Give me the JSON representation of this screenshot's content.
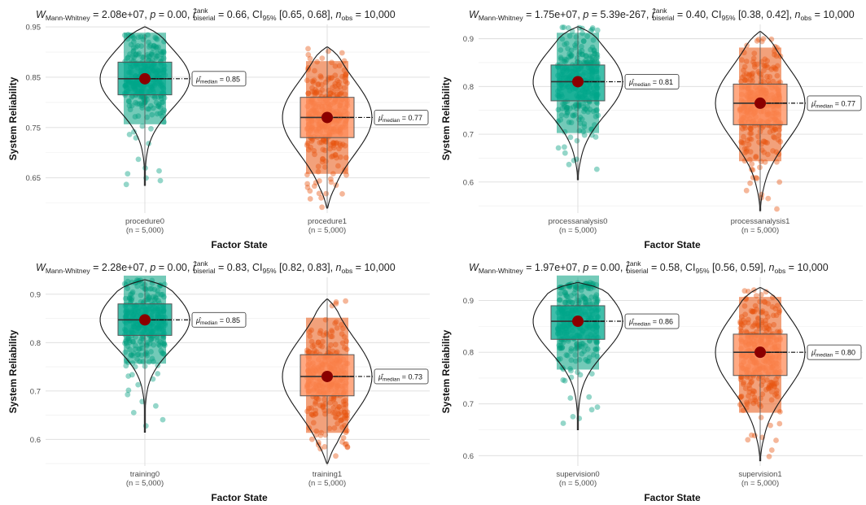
{
  "chart_data": [
    {
      "type": "violin-box-scatter",
      "subtitle": {
        "w": "2.08e+07",
        "p": "0.00",
        "r": "0.66",
        "ci": "[0.65, 0.68]",
        "n": "10,000"
      },
      "xlabel": "Factor State",
      "ylabel": "System Reliability",
      "yticks": [
        "0.65",
        "0.75",
        "0.85",
        "0.95"
      ],
      "ylim": [
        0.58,
        0.955
      ],
      "groups": [
        {
          "label": "procedure0",
          "n": "(n = 5,000)",
          "min": 0.635,
          "q1": 0.815,
          "median": 0.847,
          "q3": 0.88,
          "max": 0.935,
          "violin_top": 0.95,
          "violin_bottom": 0.635,
          "median_label": "0.85",
          "color": "#009e7e",
          "box_fill": "#00a88e"
        },
        {
          "label": "procedure1",
          "n": "(n = 5,000)",
          "min": 0.59,
          "q1": 0.73,
          "median": 0.77,
          "q3": 0.81,
          "max": 0.91,
          "violin_top": 0.91,
          "violin_bottom": 0.59,
          "median_label": "0.77",
          "color": "#e8540e",
          "box_fill": "#ff8c5a"
        }
      ]
    },
    {
      "type": "violin-box-scatter",
      "subtitle": {
        "w": "1.75e+07",
        "p": "5.39e-267",
        "r": "0.40",
        "ci": "[0.38, 0.42]",
        "n": "10,000"
      },
      "xlabel": "Factor State",
      "ylabel": "System Reliability",
      "yticks": [
        "0.6",
        "0.7",
        "0.8",
        "0.9"
      ],
      "ylim": [
        0.535,
        0.93
      ],
      "groups": [
        {
          "label": "processanalysis0",
          "n": "(n = 5,000)",
          "min": 0.605,
          "q1": 0.77,
          "median": 0.81,
          "q3": 0.845,
          "max": 0.925,
          "violin_top": 0.925,
          "violin_bottom": 0.605,
          "median_label": "0.81",
          "color": "#009e7e",
          "box_fill": "#00a88e"
        },
        {
          "label": "processanalysis1",
          "n": "(n = 5,000)",
          "min": 0.54,
          "q1": 0.72,
          "median": 0.765,
          "q3": 0.805,
          "max": 0.915,
          "violin_top": 0.915,
          "violin_bottom": 0.54,
          "median_label": "0.77",
          "color": "#e8540e",
          "box_fill": "#ff8c5a"
        }
      ]
    },
    {
      "type": "violin-box-scatter",
      "subtitle": {
        "w": "2.28e+07",
        "p": "0.00",
        "r": "0.83",
        "ci": "[0.82, 0.83]",
        "n": "10,000"
      },
      "xlabel": "Factor State",
      "ylabel": "System Reliability",
      "yticks": [
        "0.6",
        "0.7",
        "0.8",
        "0.9"
      ],
      "ylim": [
        0.545,
        0.935
      ],
      "groups": [
        {
          "label": "training0",
          "n": "(n = 5,000)",
          "min": 0.615,
          "q1": 0.815,
          "median": 0.847,
          "q3": 0.88,
          "max": 0.93,
          "violin_top": 0.93,
          "violin_bottom": 0.615,
          "median_label": "0.85",
          "color": "#009e7e",
          "box_fill": "#00a88e"
        },
        {
          "label": "training1",
          "n": "(n = 5,000)",
          "min": 0.55,
          "q1": 0.69,
          "median": 0.73,
          "q3": 0.775,
          "max": 0.89,
          "violin_top": 0.89,
          "violin_bottom": 0.55,
          "median_label": "0.73",
          "color": "#e8540e",
          "box_fill": "#ff8c5a"
        }
      ]
    },
    {
      "type": "violin-box-scatter",
      "subtitle": {
        "w": "1.97e+07",
        "p": "0.00",
        "r": "0.58",
        "ci": "[0.56, 0.59]",
        "n": "10,000"
      },
      "xlabel": "Factor State",
      "ylabel": "System Reliability",
      "yticks": [
        "0.6",
        "0.7",
        "0.8",
        "0.9"
      ],
      "ylim": [
        0.58,
        0.945
      ],
      "groups": [
        {
          "label": "supervision0",
          "n": "(n = 5,000)",
          "min": 0.65,
          "q1": 0.825,
          "median": 0.86,
          "q3": 0.89,
          "max": 0.935,
          "violin_top": 0.935,
          "violin_bottom": 0.65,
          "median_label": "0.86",
          "color": "#009e7e",
          "box_fill": "#00a88e"
        },
        {
          "label": "supervision1",
          "n": "(n = 5,000)",
          "min": 0.59,
          "q1": 0.755,
          "median": 0.8,
          "q3": 0.835,
          "max": 0.925,
          "violin_top": 0.925,
          "violin_bottom": 0.59,
          "median_label": "0.80",
          "color": "#e8540e",
          "box_fill": "#ff8c5a"
        }
      ]
    }
  ]
}
